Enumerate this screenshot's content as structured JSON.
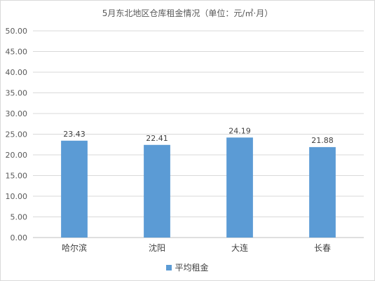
{
  "chart_data": {
    "type": "bar",
    "title": "5月东北地区仓库租金情况（单位：元/㎡·月）",
    "categories": [
      "哈尔滨",
      "沈阳",
      "大连",
      "长春"
    ],
    "series": [
      {
        "name": "平均租金",
        "values": [
          23.43,
          22.41,
          24.19,
          21.88
        ],
        "color": "#5b9bd5"
      }
    ],
    "data_labels": [
      "23.43",
      "22.41",
      "24.19",
      "21.88"
    ],
    "ylim": [
      0,
      50
    ],
    "y_ticks": [
      "0.00",
      "5.00",
      "10.00",
      "15.00",
      "20.00",
      "25.00",
      "30.00",
      "35.00",
      "40.00",
      "45.00",
      "50.00"
    ],
    "grid": true,
    "legend_position": "bottom"
  }
}
